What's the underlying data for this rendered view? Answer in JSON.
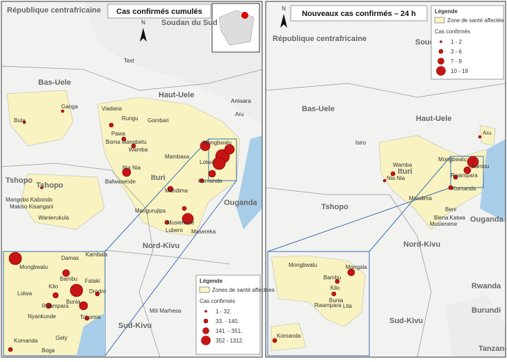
{
  "left_map": {
    "title": "Cas confirmés cumulés",
    "north": "N",
    "labels": [
      "République centrafricaine",
      "Soudan du Sud",
      "Text",
      "Bas-Uele",
      "Haut-Uele",
      "Ganga",
      "Viadana",
      "Aniwara",
      "Rungu",
      "Gombari",
      "Aru",
      "Buta",
      "Pawa",
      "Boma Mangbetu",
      "Wamba",
      "Mongbwalu",
      "Mambasa",
      "Lolwa",
      "Nia Nia",
      "Ituri",
      "Tshopo",
      "Tshopo",
      "Bafwasende",
      "Mandima",
      "Komanda",
      "Mangobo Kabondo",
      "Makiso Kisangani",
      "Ouganda",
      "Wanierukula",
      "Mangurujipa",
      "Nord-Kivu",
      "Musienene",
      "Lubero",
      "Masereka",
      "Sud-Kivu",
      "Mili Marhesa"
    ],
    "inset_labels": [
      "Damas",
      "Kambala",
      "Mongbwalu",
      "Lolwa",
      "Bunia",
      "Rwampara",
      "Nyankunde",
      "Tchomia",
      "Fataki",
      "Drodro",
      "Komanda",
      "Gety",
      "Boga",
      "Kilo",
      "Bambu"
    ],
    "legend": {
      "title": "Légende",
      "zone": "Zones de santé affectées",
      "cases_title": "Cas confirmés",
      "classes": [
        "1.- 32.",
        "33. - 140.",
        "141. - 351.",
        "352 - 1312."
      ]
    }
  },
  "right_map": {
    "title": "Nouveaux cas confirmés – 24 h",
    "north": "N",
    "labels": [
      "République centrafricaine",
      "Soudan",
      "Bas-Uele",
      "Haut-Uele",
      "Aru",
      "Isiro",
      "Wamba",
      "Ituri",
      "Mongbwalu",
      "Bambu",
      "Rwampara",
      "Nia Nia",
      "Komanda",
      "Tshopo",
      "Mandima",
      "Beni",
      "Ouganda",
      "Biena Katwa",
      "Musienene",
      "Nord-Kivu",
      "Rwanda",
      "Sud-Kivu",
      "Burundi",
      "Tanzanie"
    ],
    "inset_labels": [
      "Mongbwalu",
      "Mangala",
      "Bambu",
      "Kilo",
      "Bunia",
      "Lita",
      "Rwampara",
      "Komanda"
    ],
    "legend": {
      "title": "Légende",
      "zone": "Zone de santé affectée",
      "cases_title": "Cas confirmés",
      "classes": [
        "1 - 2",
        "3 - 6",
        "7 - 9",
        "10 - 19"
      ]
    }
  }
}
